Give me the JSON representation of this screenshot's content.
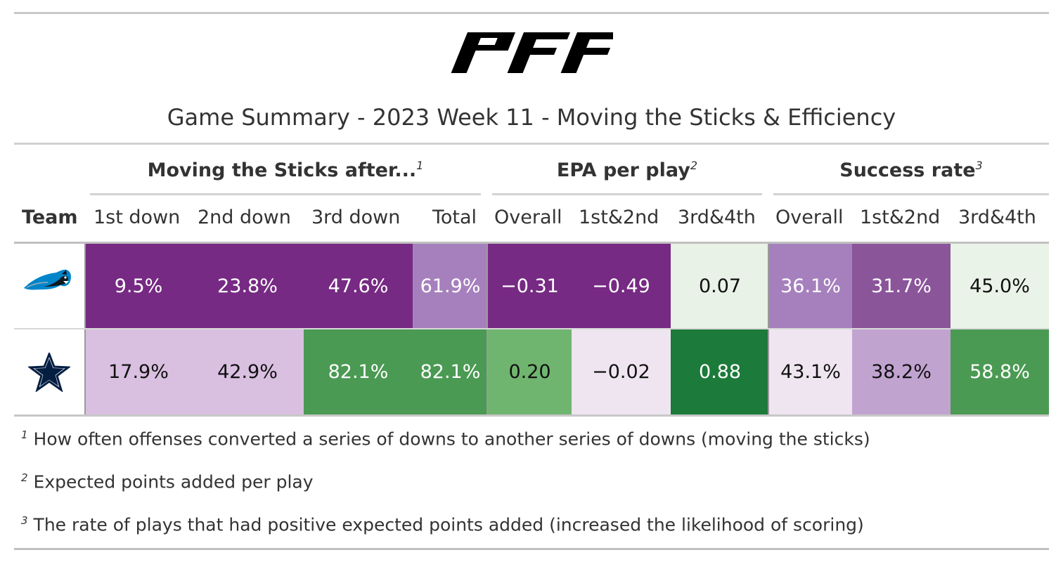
{
  "logo_text": "PFF",
  "title": "Game Summary - 2023 Week 11 - Moving the Sticks & Efficiency",
  "spanners": [
    {
      "label": "Moving the Sticks after...",
      "mark": "1"
    },
    {
      "label": "EPA per play",
      "mark": "2"
    },
    {
      "label": "Success rate",
      "mark": "3"
    }
  ],
  "columns": [
    "Team",
    "1st down",
    "2nd down",
    "3rd down",
    "Total",
    "Overall",
    "1st&2nd",
    "3rd&4th",
    "Overall",
    "1st&2nd",
    "3rd&4th"
  ],
  "teams": [
    {
      "icon": "panthers-logo-icon",
      "colors": {
        "primary": "#0085ca",
        "secondary": "#101820"
      }
    },
    {
      "icon": "cowboys-star-icon",
      "colors": {
        "primary": "#041e42",
        "secondary": "#ffffff"
      }
    }
  ],
  "chart_data": {
    "type": "table",
    "title": "Game Summary - 2023 Week 11 - Moving the Sticks & Efficiency",
    "groups": [
      {
        "name": "Moving the Sticks after...",
        "columns": [
          "1st down",
          "2nd down",
          "3rd down",
          "Total"
        ]
      },
      {
        "name": "EPA per play",
        "columns": [
          "Overall",
          "1st&2nd",
          "3rd&4th"
        ]
      },
      {
        "name": "Success rate",
        "columns": [
          "Overall",
          "1st&2nd",
          "3rd&4th"
        ]
      }
    ],
    "rows": [
      {
        "cells": [
          "9.5%",
          "23.8%",
          "47.6%",
          "61.9%",
          "−0.31",
          "−0.49",
          "0.07",
          "36.1%",
          "31.7%",
          "45.0%"
        ],
        "fills": [
          "#762a83",
          "#762a83",
          "#762a83",
          "#a680bd",
          "#762a83",
          "#762a83",
          "#e8f2e6",
          "#a680bd",
          "#8b559a",
          "#eaf3e8"
        ],
        "text_colors": [
          "#ffffff",
          "#ffffff",
          "#ffffff",
          "#ffffff",
          "#ffffff",
          "#ffffff",
          "#111111",
          "#ffffff",
          "#ffffff",
          "#111111"
        ]
      },
      {
        "cells": [
          "17.9%",
          "42.9%",
          "82.1%",
          "82.1%",
          "0.20",
          "−0.02",
          "0.88",
          "43.1%",
          "38.2%",
          "58.8%"
        ],
        "fills": [
          "#d9bfe0",
          "#d9bfe0",
          "#4a9a53",
          "#4a9a53",
          "#70b56f",
          "#efe5f1",
          "#1c7a3a",
          "#efe5f1",
          "#c1a3d0",
          "#4a9a53"
        ],
        "text_colors": [
          "#111111",
          "#111111",
          "#ffffff",
          "#ffffff",
          "#111111",
          "#111111",
          "#ffffff",
          "#111111",
          "#111111",
          "#ffffff"
        ]
      }
    ]
  },
  "footnotes": [
    {
      "mark": "1",
      "text": "How often offenses converted a series of downs to another series of downs (moving the sticks)"
    },
    {
      "mark": "2",
      "text": "Expected points added per play"
    },
    {
      "mark": "3",
      "text": "The rate of plays that had positive expected points added (increased the likelihood of scoring)"
    }
  ]
}
